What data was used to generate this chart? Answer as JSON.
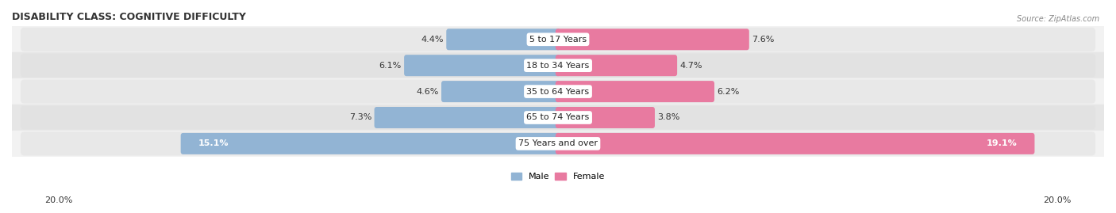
{
  "title": "DISABILITY CLASS: COGNITIVE DIFFICULTY",
  "source": "Source: ZipAtlas.com",
  "categories": [
    "5 to 17 Years",
    "18 to 34 Years",
    "35 to 64 Years",
    "65 to 74 Years",
    "75 Years and over"
  ],
  "male_values": [
    4.4,
    6.1,
    4.6,
    7.3,
    15.1
  ],
  "female_values": [
    7.6,
    4.7,
    6.2,
    3.8,
    19.1
  ],
  "male_color": "#92b4d4",
  "female_color": "#e87aa0",
  "male_label": "Male",
  "female_label": "Female",
  "axis_max": 20.0,
  "row_bg_even": "#f2f2f2",
  "row_bg_odd": "#e6e6e6",
  "title_fontsize": 9,
  "label_fontsize": 8,
  "value_fontsize": 8,
  "axis_label_fontsize": 8
}
